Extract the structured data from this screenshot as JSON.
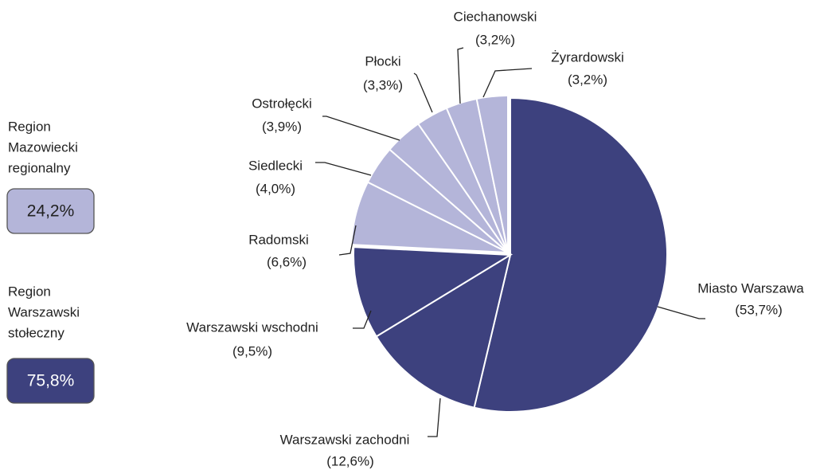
{
  "chart_data": {
    "type": "pie",
    "categories": [
      "Miasto Warszawa",
      "Warszawski zachodni",
      "Warszawski wschodni",
      "Radomski",
      "Siedlecki",
      "Ostrołęcki",
      "Płocki",
      "Ciechanowski",
      "Żyrardowski"
    ],
    "values": [
      53.7,
      12.6,
      9.5,
      6.6,
      4.0,
      3.9,
      3.3,
      3.2,
      3.2
    ],
    "value_labels": [
      "(53,7%)",
      "(12,6%)",
      "(9,5%)",
      "(6,6%)",
      "(4,0%)",
      "(3,9%)",
      "(3,3%)",
      "(3,2%)",
      "(3,2%)"
    ],
    "colors": [
      "#3d417e",
      "#3d417e",
      "#3d417e",
      "#b4b5d9",
      "#b4b5d9",
      "#b4b5d9",
      "#b4b5d9",
      "#b4b5d9",
      "#b4b5d9"
    ],
    "groups": [
      {
        "lines": [
          "Region",
          "Mazowiecki",
          "regionalny"
        ],
        "value": 24.2,
        "value_label": "24,2%",
        "color": "#b4b5d9"
      },
      {
        "lines": [
          "Region",
          "Warszawski",
          "stołeczny"
        ],
        "value": 75.8,
        "value_label": "75,8%",
        "color": "#3d417e"
      }
    ]
  }
}
